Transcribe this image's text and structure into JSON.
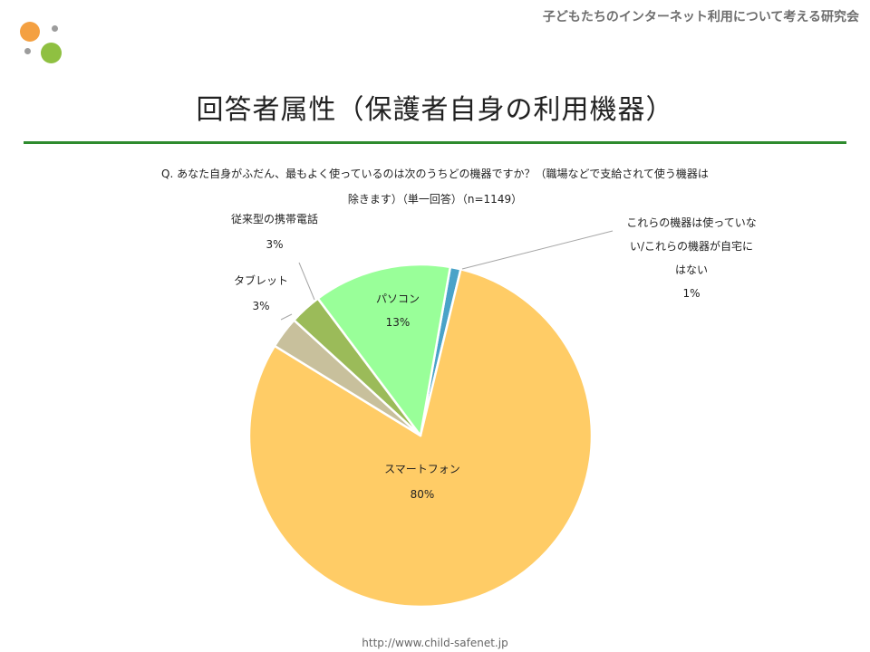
{
  "header": {
    "org_name": "子どもたちのインターネット利用について考える研究会",
    "logo_colors": [
      "#f4a041",
      "#8fc041",
      "#9c9c9c"
    ]
  },
  "title": "回答者属性（保護者自身の利用機器）",
  "question": {
    "line1": "Q.  あなた自身がふだん、最もよく使っているのは次のうちどの機器ですか？（職場などで支給されて使う機器は",
    "line2": "除きます）（単一回答）（n=1149）"
  },
  "chart_data": {
    "type": "pie",
    "slices": [
      {
        "label": "これらの機器は使っていない/これらの機器が自宅にはない",
        "label_lines": [
          "これらの機器は使っていな",
          "い/これらの機器が自宅に",
          "はない"
        ],
        "value": 1,
        "value_label": "1%",
        "color": "#4aa3c8"
      },
      {
        "label": "スマートフォン",
        "label_lines": [
          "スマートフォン"
        ],
        "value": 80,
        "value_label": "80%",
        "color": "#ffcc66"
      },
      {
        "label": "タブレット",
        "label_lines": [
          "タブレット"
        ],
        "value": 3,
        "value_label": "3%",
        "color": "#c8c09c"
      },
      {
        "label": "従来型の携帯電話",
        "label_lines": [
          "従来型の携帯電話"
        ],
        "value": 3,
        "value_label": "3%",
        "color": "#9bbb59"
      },
      {
        "label": "パソコン",
        "label_lines": [
          "パソコン"
        ],
        "value": 13,
        "value_label": "13%",
        "color": "#99ff99"
      }
    ],
    "start_angle_deg": 10,
    "direction": "clockwise",
    "legend": "none"
  },
  "footer": {
    "url": "http://www.child-safenet.jp"
  }
}
